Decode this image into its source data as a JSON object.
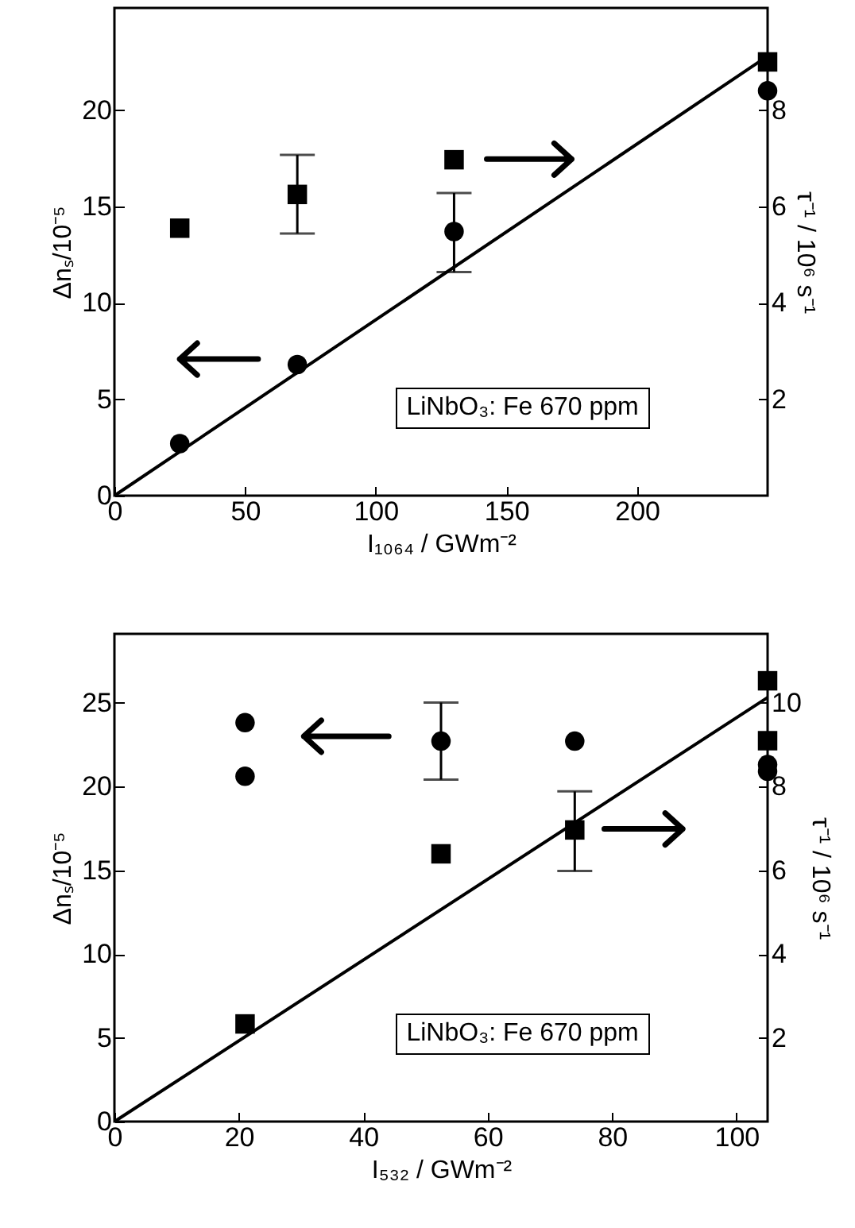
{
  "chart_data": [
    {
      "type": "scatter",
      "xlabel": "I₁₀₆₄ / GWm⁻²",
      "ylabel": "Δnₛ/10⁻⁵",
      "y2label": "τ⁻¹ / 10⁶ s⁻¹",
      "xlim": [
        0,
        250
      ],
      "xticks": [
        0,
        50,
        100,
        150,
        200
      ],
      "ylim": [
        0,
        25.3
      ],
      "yticks": [
        0,
        5,
        10,
        15,
        20
      ],
      "y2lim": [
        0,
        10.12
      ],
      "y2ticks": [
        2,
        4,
        6,
        8
      ],
      "grid": false,
      "annotations": [
        "LiNbO₃: Fe 670 ppm"
      ],
      "series": [
        {
          "type": "scatter",
          "marker": "circle",
          "color": "#000000",
          "x": [
            25,
            70,
            130,
            250
          ],
          "values": [
            2.7,
            6.8,
            13.7,
            21.0
          ],
          "errors": [
            null,
            null,
            [
              11.6,
              15.7
            ],
            null
          ]
        },
        {
          "type": "scatter",
          "marker": "square",
          "axis": "y2",
          "color": "#000000",
          "x": [
            25,
            70,
            130,
            250
          ],
          "values": [
            5.55,
            6.25,
            6.97,
            9.0
          ],
          "errors": [
            null,
            [
              5.44,
              7.07
            ],
            null,
            null
          ]
        },
        {
          "type": "line",
          "color": "#000000",
          "x": [
            0,
            250
          ],
          "values": [
            0,
            22.8
          ]
        }
      ]
    },
    {
      "type": "scatter",
      "xlabel": "I₅₃₂ / GWm⁻²",
      "ylabel": "Δnₛ/10⁻⁵",
      "y2label": "τ⁻¹ / 10⁶ s⁻¹",
      "xlim": [
        0,
        105
      ],
      "xticks": [
        0,
        20,
        40,
        60,
        80,
        100
      ],
      "ylim": [
        0,
        29.1
      ],
      "yticks": [
        0,
        5,
        10,
        15,
        20,
        25
      ],
      "y2lim": [
        0,
        11.64
      ],
      "y2ticks": [
        2,
        4,
        6,
        8,
        10
      ],
      "grid": false,
      "annotations": [
        "LiNbO₃: Fe 670 ppm"
      ],
      "series": [
        {
          "type": "scatter",
          "marker": "circle",
          "color": "#000000",
          "x": [
            21,
            21,
            52.5,
            74,
            105,
            105
          ],
          "values": [
            23.8,
            20.6,
            22.7,
            22.7,
            21.3,
            20.9
          ],
          "errors": [
            null,
            null,
            [
              20.4,
              25.0
            ],
            null,
            null,
            null
          ]
        },
        {
          "type": "scatter",
          "marker": "square",
          "axis": "y2",
          "color": "#000000",
          "x": [
            21,
            52.5,
            74,
            105,
            105
          ],
          "values": [
            2.33,
            6.39,
            6.96,
            10.52,
            9.09
          ],
          "errors": [
            null,
            null,
            [
              5.98,
              7.88
            ],
            null,
            null
          ]
        },
        {
          "type": "line",
          "color": "#000000",
          "x": [
            0,
            105
          ],
          "values": [
            0,
            25.3
          ]
        }
      ]
    }
  ]
}
